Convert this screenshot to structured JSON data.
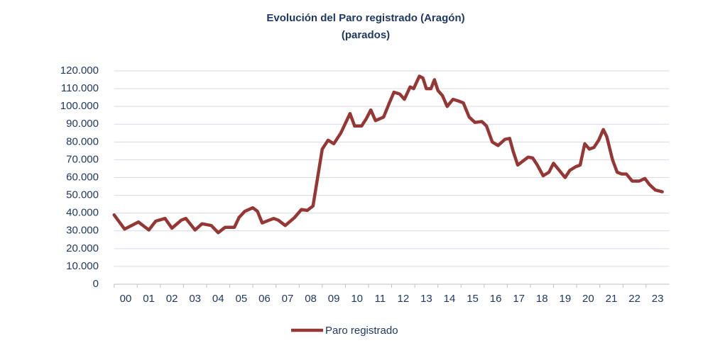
{
  "chart_data": {
    "type": "line",
    "title": "Evolución del Paro registrado (Aragón)",
    "subtitle": "(parados)",
    "x": [
      2000.0,
      2000.45,
      2001.05,
      2001.5,
      2001.8,
      2002.2,
      2002.5,
      2002.9,
      2003.1,
      2003.5,
      2003.8,
      2004.2,
      2004.5,
      2004.8,
      2005.2,
      2005.4,
      2005.65,
      2006.0,
      2006.2,
      2006.4,
      2006.9,
      2007.1,
      2007.4,
      2007.8,
      2008.1,
      2008.35,
      2008.6,
      2008.8,
      2009.0,
      2009.25,
      2009.5,
      2009.8,
      2010.2,
      2010.4,
      2010.7,
      2010.9,
      2011.1,
      2011.3,
      2011.65,
      2011.9,
      2012.1,
      2012.35,
      2012.55,
      2012.8,
      2012.95,
      2013.2,
      2013.35,
      2013.5,
      2013.7,
      2013.85,
      2014.0,
      2014.2,
      2014.4,
      2014.65,
      2014.9,
      2015.1,
      2015.35,
      2015.6,
      2015.9,
      2016.1,
      2016.35,
      2016.6,
      2016.9,
      2017.1,
      2017.25,
      2017.45,
      2017.65,
      2017.9,
      2018.1,
      2018.3,
      2018.55,
      2018.8,
      2019.0,
      2019.25,
      2019.5,
      2019.7,
      2019.95,
      2020.15,
      2020.35,
      2020.55,
      2020.75,
      2020.95,
      2021.15,
      2021.3,
      2021.55,
      2021.75,
      2021.95,
      2022.15,
      2022.4,
      2022.7,
      2022.95,
      2023.15,
      2023.4,
      2023.7
    ],
    "series": [
      {
        "name": "Paro registrado",
        "color": "#953735",
        "values": [
          39000,
          31000,
          35000,
          30500,
          35500,
          37000,
          31500,
          36000,
          37000,
          30500,
          34000,
          33000,
          29000,
          32000,
          32000,
          37500,
          41000,
          43000,
          41000,
          34500,
          37000,
          36000,
          33000,
          37500,
          42000,
          41500,
          44000,
          60000,
          76000,
          81000,
          79000,
          85000,
          96000,
          89000,
          89000,
          93000,
          98000,
          92000,
          94000,
          102000,
          108000,
          107000,
          104000,
          111000,
          110000,
          117000,
          116000,
          110000,
          110000,
          115000,
          109000,
          106000,
          100000,
          104000,
          103000,
          102000,
          94000,
          91000,
          91500,
          89000,
          80000,
          78000,
          81500,
          82000,
          75000,
          67000,
          69000,
          71500,
          71000,
          67000,
          61000,
          63000,
          68000,
          64000,
          60000,
          64000,
          66000,
          67000,
          79000,
          76000,
          77000,
          81000,
          87000,
          83000,
          70000,
          63000,
          62000,
          62000,
          58000,
          58000,
          59500,
          56000,
          53000,
          52000
        ]
      }
    ],
    "xlim": [
      2000,
      2024
    ],
    "xticks": [
      {
        "value": 2000,
        "label": "00"
      },
      {
        "value": 2001,
        "label": "01"
      },
      {
        "value": 2002,
        "label": "02"
      },
      {
        "value": 2003,
        "label": "03"
      },
      {
        "value": 2004,
        "label": "04"
      },
      {
        "value": 2005,
        "label": "05"
      },
      {
        "value": 2006,
        "label": "06"
      },
      {
        "value": 2007,
        "label": "07"
      },
      {
        "value": 2008,
        "label": "08"
      },
      {
        "value": 2009,
        "label": "09"
      },
      {
        "value": 2010,
        "label": "10"
      },
      {
        "value": 2011,
        "label": "11"
      },
      {
        "value": 2012,
        "label": "12"
      },
      {
        "value": 2013,
        "label": "13"
      },
      {
        "value": 2014,
        "label": "14"
      },
      {
        "value": 2015,
        "label": "15"
      },
      {
        "value": 2016,
        "label": "16"
      },
      {
        "value": 2017,
        "label": "17"
      },
      {
        "value": 2018,
        "label": "18"
      },
      {
        "value": 2019,
        "label": "19"
      },
      {
        "value": 2020,
        "label": "20"
      },
      {
        "value": 2021,
        "label": "21"
      },
      {
        "value": 2022,
        "label": "22"
      },
      {
        "value": 2023,
        "label": "23"
      }
    ],
    "ylim": [
      0,
      120000
    ],
    "yticks": [
      0,
      {
        "value": 10000,
        "label": "10.000"
      },
      {
        "value": 20000,
        "label": "20.000"
      },
      {
        "value": 30000,
        "label": "30.000"
      },
      {
        "value": 40000,
        "label": "40.000"
      },
      {
        "value": 50000,
        "label": "50.000"
      },
      {
        "value": 60000,
        "label": "60.000"
      },
      {
        "value": 70000,
        "label": "70.000"
      },
      {
        "value": 80000,
        "label": "80.000"
      },
      {
        "value": 90000,
        "label": "90.000"
      },
      {
        "value": 100000,
        "label": "100.000"
      },
      {
        "value": 110000,
        "label": "110.000"
      },
      {
        "value": 120000,
        "label": "120.000"
      }
    ],
    "grid": true,
    "legend": "bottom"
  }
}
